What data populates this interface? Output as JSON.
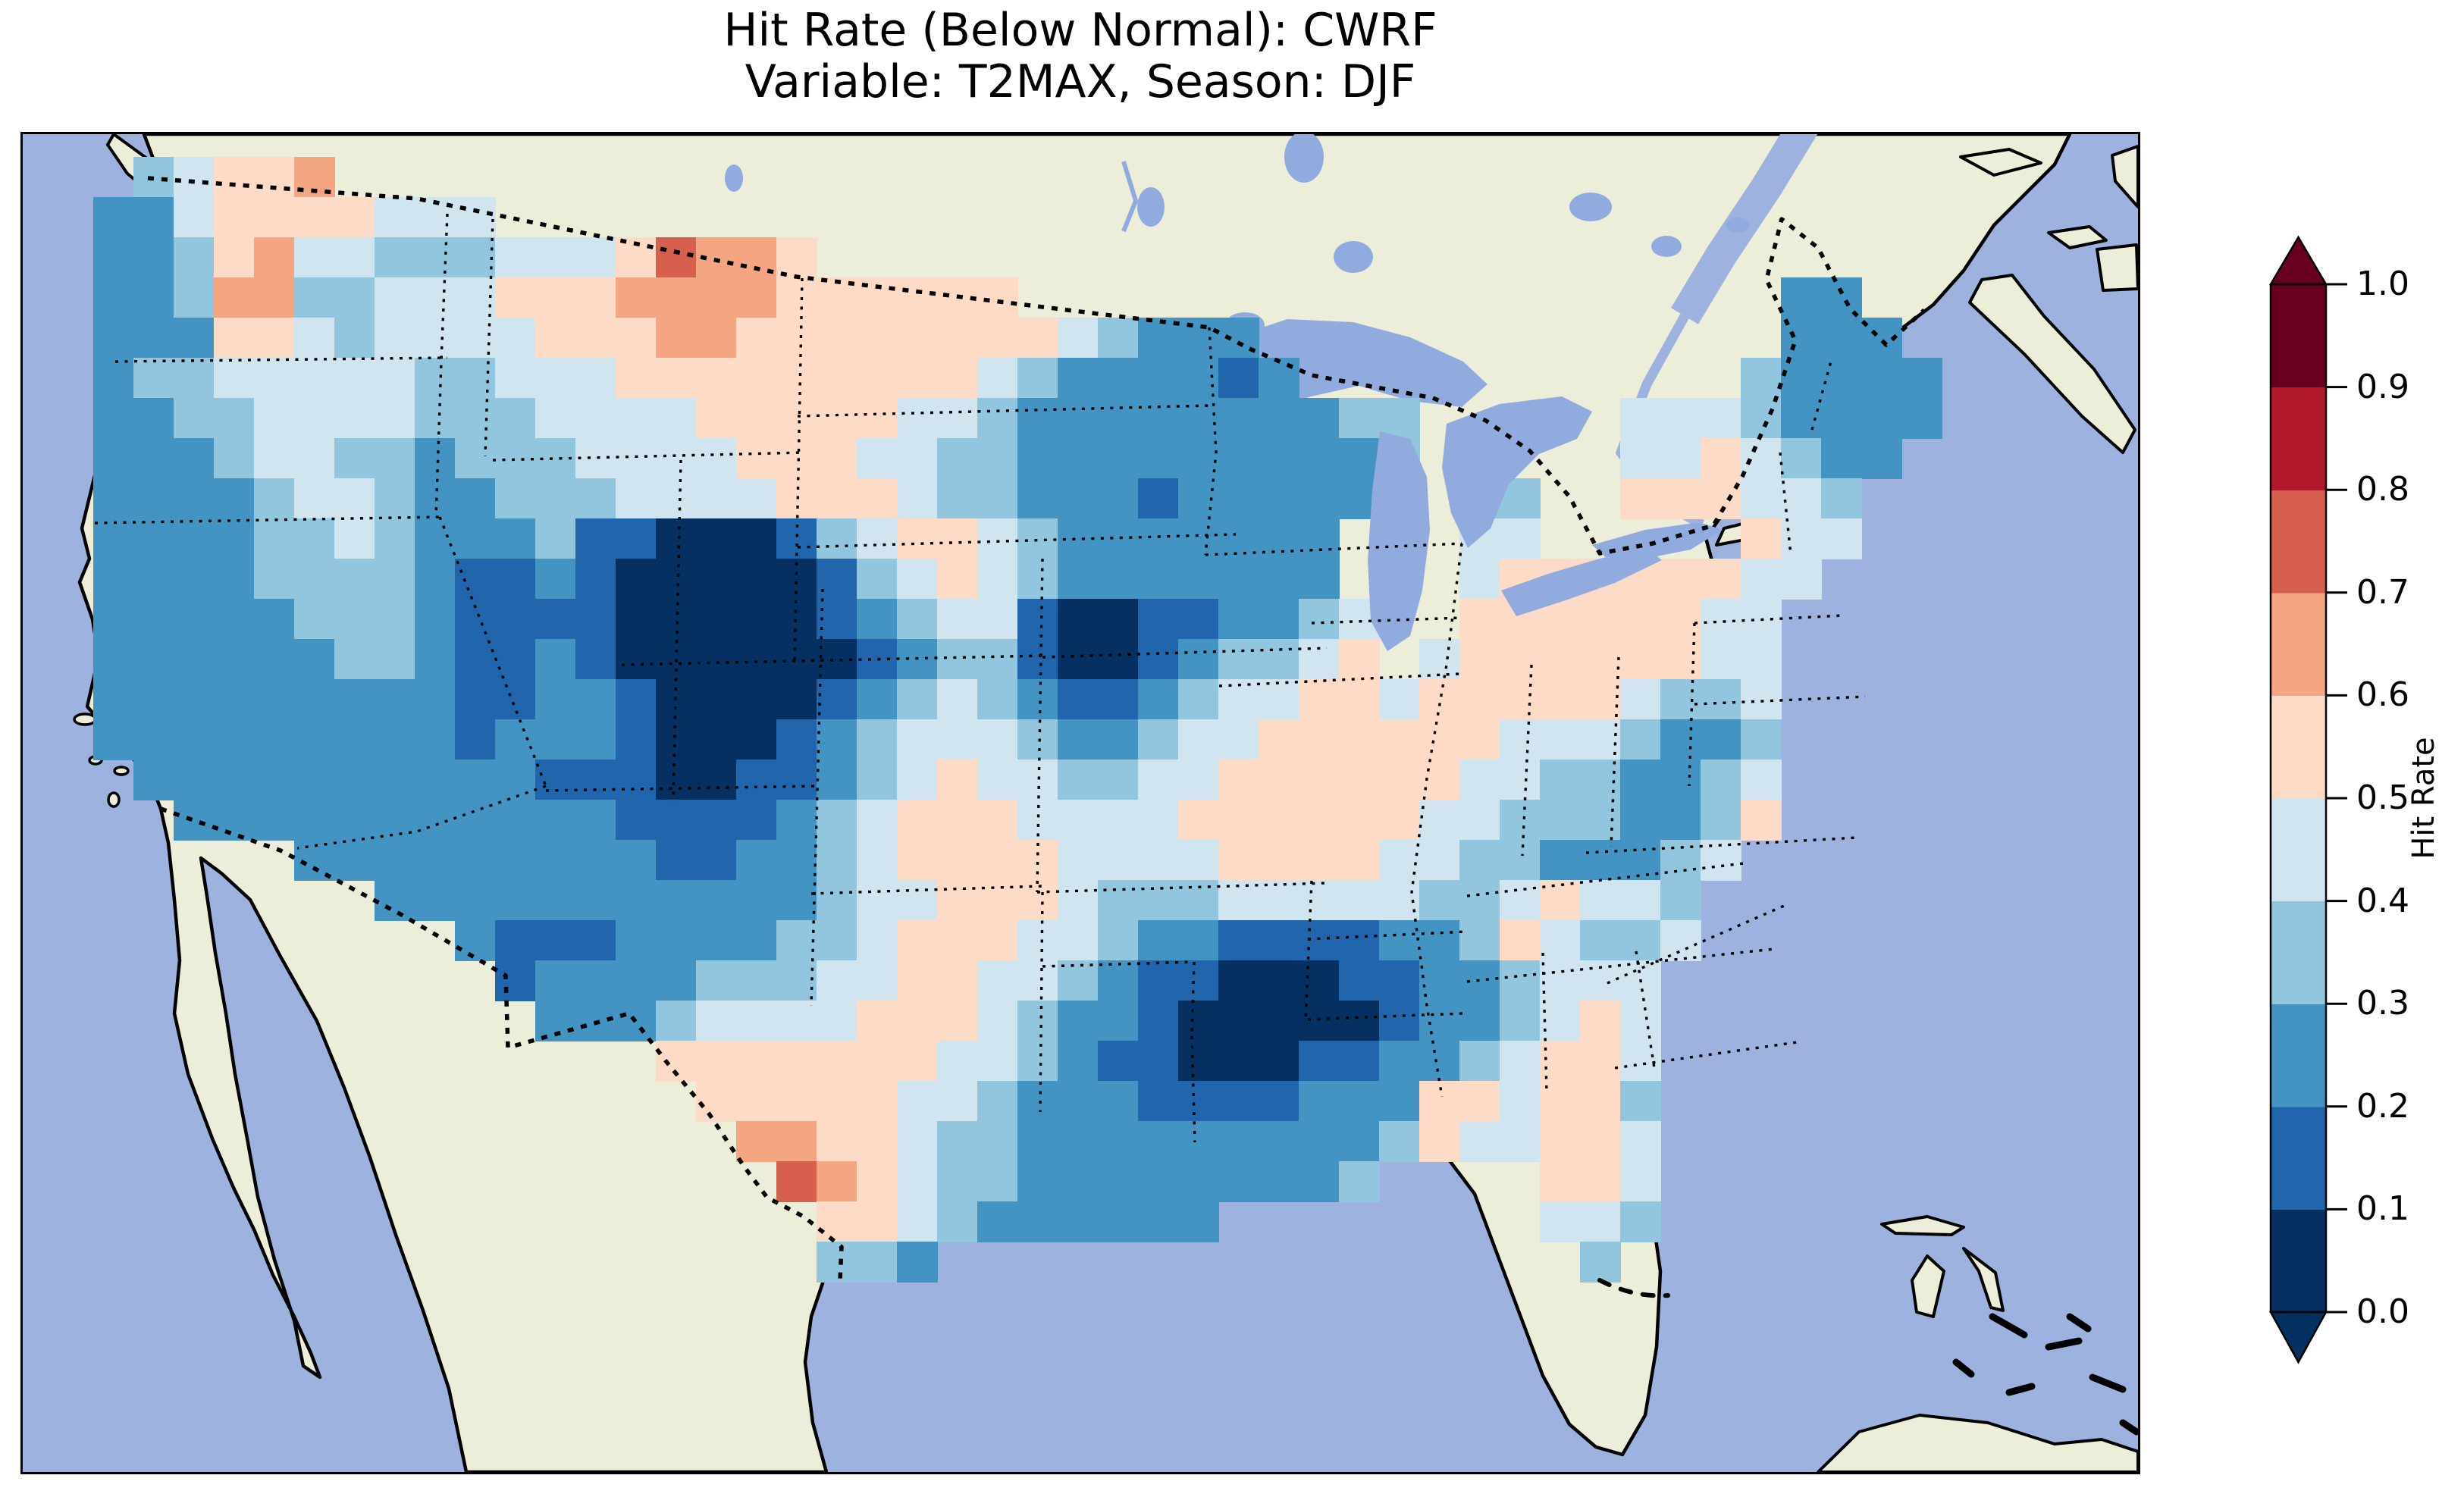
{
  "figure": {
    "title_line1": "Hit Rate (Below Normal): CWRF",
    "title_line2": "Variable: T2MAX, Season: DJF"
  },
  "colorbar": {
    "label": "Hit Rate",
    "ticks": [
      "1.0",
      "0.9",
      "0.8",
      "0.7",
      "0.6",
      "0.5",
      "0.4",
      "0.3",
      "0.2",
      "0.1",
      "0.0"
    ],
    "bin_colors_low_to_high": [
      "#053061",
      "#2166ac",
      "#4393c3",
      "#92c5de",
      "#d1e5f0",
      "#fddbc7",
      "#f4a582",
      "#d6604d",
      "#b2182b",
      "#67001f"
    ],
    "extend_low_color": "#053061",
    "extend_high_color": "#67001f"
  },
  "map_colors": {
    "ocean": "#9db2de",
    "land": "#edeeda",
    "lake": "#92abdf",
    "coastline": "#000000"
  },
  "chart_data": {
    "type": "heatmap",
    "title": "Hit Rate (Below Normal): CWRF",
    "subtitle": "Variable: T2MAX, Season: DJF",
    "metric": "Hit Rate (Below Normal)",
    "model": "CWRF",
    "variable": "T2MAX",
    "season": "DJF",
    "region": "Continental United States",
    "colorbar_label": "Hit Rate",
    "value_range": [
      0.0,
      1.0
    ],
    "bin_edges": [
      0.0,
      0.1,
      0.2,
      0.3,
      0.4,
      0.5,
      0.6,
      0.7,
      0.8,
      0.9,
      1.0
    ],
    "bin_colors": [
      "#053061",
      "#2166ac",
      "#4393c3",
      "#92c5de",
      "#d1e5f0",
      "#fddbc7",
      "#f4a582",
      "#d6604d",
      "#b2182b",
      "#67001f"
    ],
    "legend_position": "right",
    "grid_note": "Estimated hit-rate field over CONUS on a 48x28 grid; each digit is the 0.1-wide bin index of the cell value (0 = 0.0-0.1 darkest blue, 5 = 0.5-0.6 pale pink, 9 = 0.9-1.0 darkest red); '.' = no data (ocean, Canada, Mexico).",
    "grid_rows": [
      "..34556.........................................",
      ".2245555444......................................",
      ".223564433344457665..............................",
      ".22366334445556666555555...................22...",
      ".22255434444555665555555543222.............222..",
      ".233444443344455555555543222212...........32222.",
      ".223344443334444555554432222222233.....44432222.",
      ".222344332333444455544332222222223.....4454322..",
      ".222234432233344445554332221222 22..33..555443...",
      ".2222334322231100013455432222222...44.....544...",
      ".2222333321121000001345432222222...455555544....",
      ".2222233321111000001234410011 2234..55555544.....",
      ".22222233211210000001233100123345.455555544.....",
      ".222222222112210000123432112344554555554334.....",
      ".222222222122210001234443223445555554443223.....",
      "..22222222221110011234544334455555544332234.....",
      "...2222222222211112345554444555555443332235.....",
      "......222222222112234555544445555443322234......",
      "........222222222223445554333444443345443.......",
      "..........2111222233455544322111122354334.......",
      "...........12222333445544321100011223444........",
      "............2223444455543221000001223454........",
      "...............5555555443211000112234554........",
      "................555554432221111222554553........",
      ".................66554332222222223544554........",
      "..................765433222222223....554........",
      "...................5543222222........443........",
      "...................332................3........."
    ]
  }
}
